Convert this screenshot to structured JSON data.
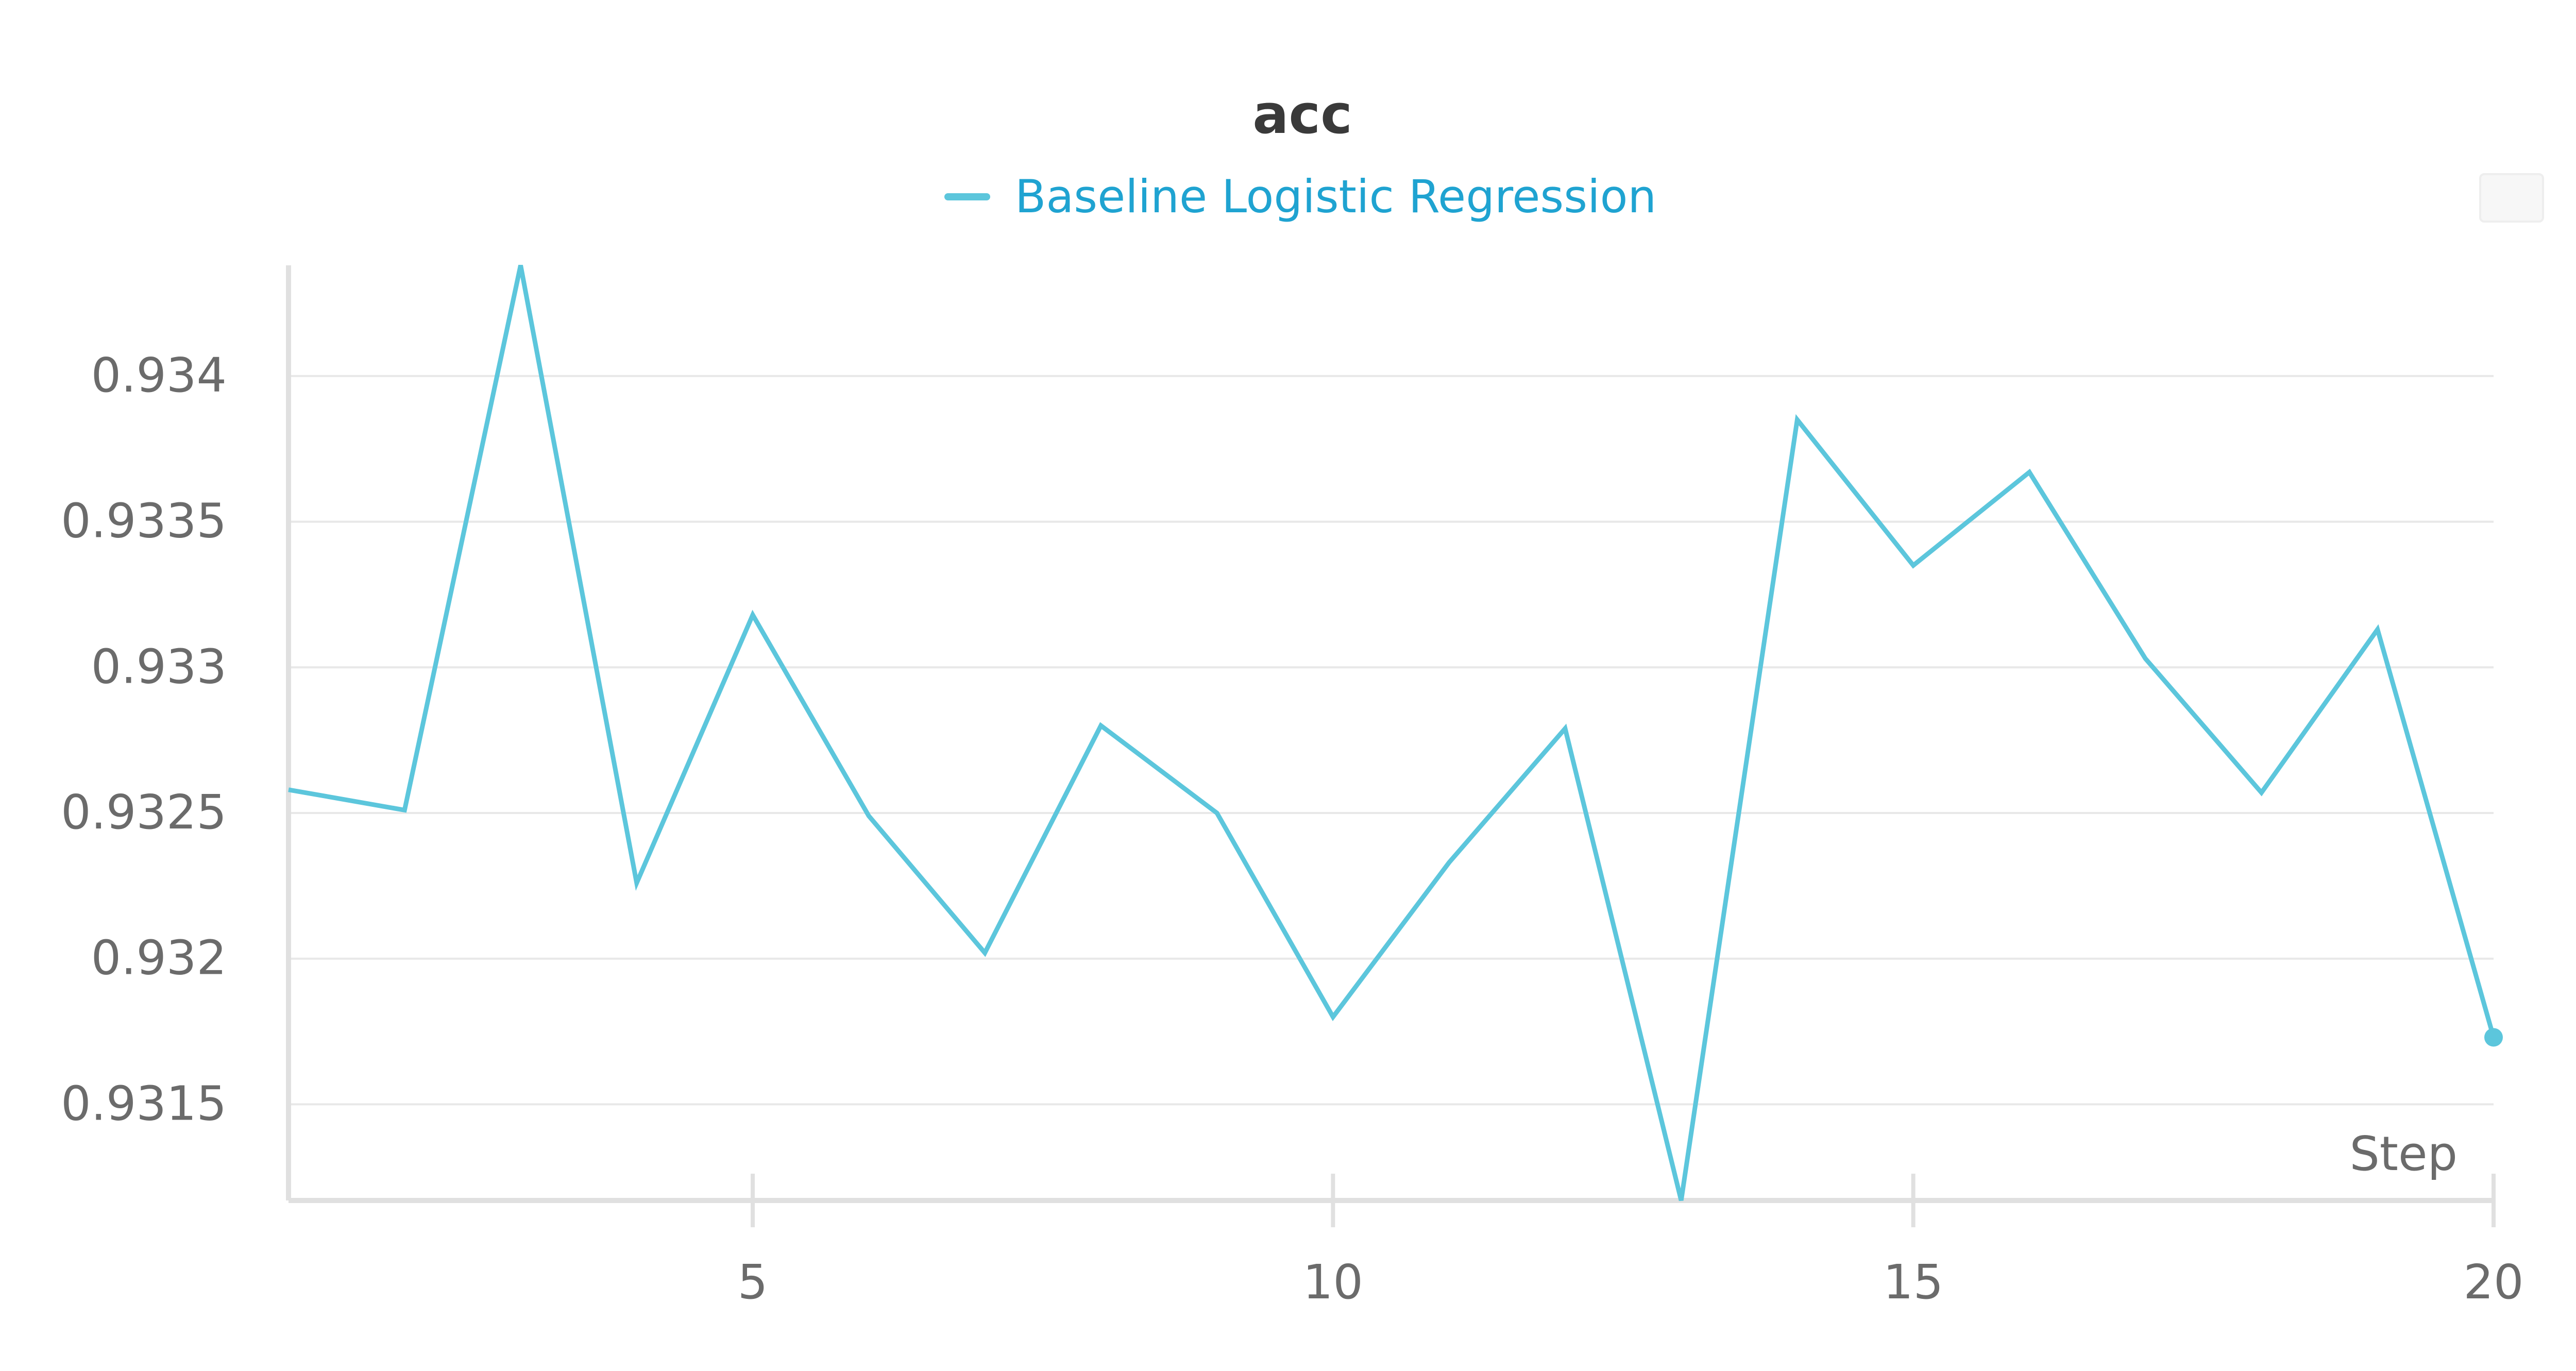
{
  "chart_data": {
    "type": "line",
    "title": "acc",
    "xlabel": "Step",
    "ylabel": "",
    "x_ticks": [
      "5",
      "10",
      "15",
      "20"
    ],
    "y_ticks": [
      "0.9315",
      "0.932",
      "0.9325",
      "0.933",
      "0.9335",
      "0.934"
    ],
    "xlim": [
      1,
      20
    ],
    "ylim": [
      0.93117,
      0.93438
    ],
    "grid": true,
    "legend_position": "top-center",
    "series": [
      {
        "name": "Baseline Logistic Regression",
        "color": "#5cc6dc",
        "x": [
          1,
          2,
          3,
          4,
          5,
          6,
          7,
          8,
          9,
          10,
          11,
          12,
          13,
          14,
          15,
          16,
          17,
          18,
          19,
          20
        ],
        "y": [
          0.93258,
          0.93251,
          0.93438,
          0.93226,
          0.93318,
          0.93249,
          0.93202,
          0.9328,
          0.9325,
          0.9318,
          0.93233,
          0.93279,
          0.93117,
          0.93385,
          0.93335,
          0.93367,
          0.93303,
          0.93257,
          0.93313,
          0.93173
        ]
      }
    ]
  },
  "colors": {
    "line": "#5cc6dc",
    "legend_text": "#1fa3d1",
    "title": "#3a3a3a",
    "ticks": "#6b6b6b",
    "grid": "#e8e8e8",
    "axis": "#e0e0e0"
  }
}
